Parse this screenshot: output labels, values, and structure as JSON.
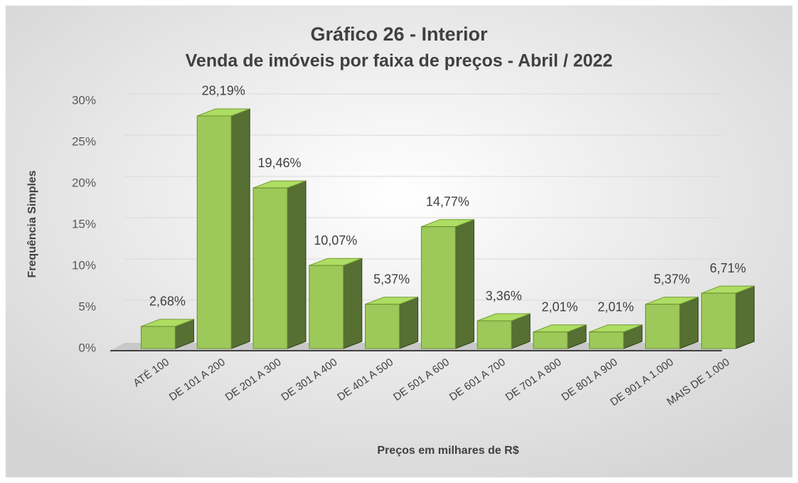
{
  "chart_data": {
    "type": "bar3d",
    "title": "Gráfico 26 - Interior",
    "subtitle": "Venda de imóveis por faixa de preços - Abril / 2022",
    "x_label": "Preços em milhares de R$",
    "y_label": "Frequência Simples",
    "categories": [
      "ATÉ 100",
      "DE 101 A 200",
      "DE 201 A 300",
      "DE 301 A 400",
      "DE 401 A 500",
      "DE 501 A 600",
      "DE 601 A 700",
      "DE 701 A 800",
      "DE 801 A 900",
      "DE 901 A 1.000",
      "MAIS DE 1.000"
    ],
    "values": [
      2.68,
      28.19,
      19.46,
      10.07,
      5.37,
      14.77,
      3.36,
      2.01,
      2.01,
      5.37,
      6.71
    ],
    "value_labels": [
      "2,68%",
      "28,19%",
      "19,46%",
      "10,07%",
      "5,37%",
      "14,77%",
      "3,36%",
      "2,01%",
      "2,01%",
      "5,37%",
      "6,71%"
    ],
    "color": "#9dc95a",
    "ylim": [
      0,
      30
    ],
    "yticks": [
      {
        "value": 0,
        "label": "0%"
      },
      {
        "value": 5,
        "label": "5%"
      },
      {
        "value": 10,
        "label": "10%"
      },
      {
        "value": 15,
        "label": "15%"
      },
      {
        "value": 20,
        "label": "20%"
      },
      {
        "value": 25,
        "label": "25%"
      },
      {
        "value": 30,
        "label": "30%"
      }
    ],
    "grid": true
  }
}
